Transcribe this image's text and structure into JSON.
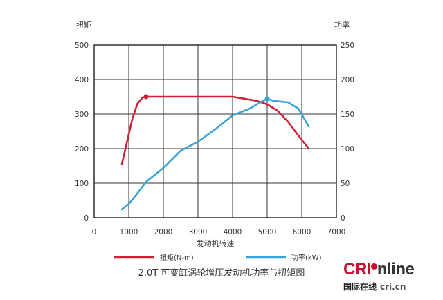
{
  "chart_data": {
    "type": "line",
    "xlabel": "发动机转速",
    "ylabel_left": "扭矩",
    "ylabel_right": "功率",
    "xlim": [
      0,
      7000
    ],
    "ylim_left": [
      0,
      500
    ],
    "ylim_right": [
      0,
      250
    ],
    "x_ticks": [
      "0",
      "1000",
      "2000",
      "3000",
      "4000",
      "5000",
      "6000",
      "7000"
    ],
    "y_ticks_left": [
      "0",
      "100",
      "200",
      "300",
      "400",
      "500"
    ],
    "y_ticks_right": [
      "0",
      "50",
      "100",
      "150",
      "200",
      "250"
    ],
    "grid": true,
    "series": [
      {
        "name": "扭矩(N-m)",
        "axis": "left",
        "color": "#cc2233",
        "x": [
          800,
          950,
          1100,
          1250,
          1400,
          1500,
          2000,
          3000,
          3500,
          4000,
          4300,
          4700,
          5000,
          5300,
          5600,
          5900,
          6200
        ],
        "y": [
          155,
          220,
          285,
          330,
          348,
          350,
          350,
          350,
          350,
          350,
          345,
          338,
          328,
          310,
          278,
          238,
          200
        ],
        "markers": [
          {
            "x": 1500,
            "y": 350
          }
        ]
      },
      {
        "name": "功率(kW)",
        "axis": "right",
        "color": "#3aa3d6",
        "x": [
          800,
          1000,
          1200,
          1500,
          2000,
          2500,
          3000,
          3500,
          4000,
          4500,
          4800,
          5000,
          5200,
          5600,
          5900,
          6200
        ],
        "y": [
          12,
          20,
          32,
          52,
          72,
          97,
          110,
          128,
          148,
          158,
          167,
          172,
          169,
          167,
          158,
          132
        ],
        "markers": [
          {
            "x": 5000,
            "y": 172
          }
        ]
      }
    ],
    "legend": "bottom"
  },
  "caption": "2.0T 可变缸涡轮增压发动机功率与扭矩图",
  "logo": {
    "cri": "CRI",
    "online": "nline",
    "sub": "国际在线",
    "url": "cri.cn"
  }
}
